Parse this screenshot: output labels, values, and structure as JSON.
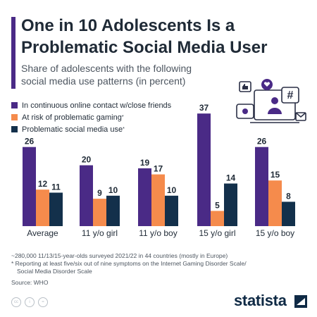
{
  "header": {
    "title_line1": "One in 10 Adolescents Is a",
    "title_line2": "Problematic Social Media User",
    "subtitle_line1": "Share of adolescents with the following",
    "subtitle_line2": "social media use patterns (in percent)"
  },
  "legend": [
    {
      "label": "In continuous online contact w/close friends",
      "marker": "",
      "color": "#4a2a86"
    },
    {
      "label": "At risk of problematic gaming",
      "marker": "*",
      "color": "#f58b4c"
    },
    {
      "label": "Problematic social media use",
      "marker": "*",
      "color": "#13304b"
    }
  ],
  "chart_data": {
    "type": "bar",
    "categories": [
      "Average",
      "11 y/o girl",
      "11 y/o boy",
      "15 y/o girl",
      "15 y/o boy"
    ],
    "series": [
      {
        "name": "In continuous online contact w/close friends",
        "values": [
          26,
          20,
          19,
          37,
          26
        ],
        "color": "#4a2a86"
      },
      {
        "name": "At risk of problematic gaming",
        "values": [
          12,
          9,
          17,
          5,
          15
        ],
        "color": "#f58b4c"
      },
      {
        "name": "Problematic social media use",
        "values": [
          11,
          10,
          10,
          14,
          8
        ],
        "color": "#13304b"
      }
    ],
    "title": "One in 10 Adolescents Is a Problematic Social Media User",
    "xlabel": "",
    "ylabel": "",
    "ylim": [
      0,
      37
    ],
    "grid": false,
    "legend": "top-left"
  },
  "notes": {
    "line1": "~280,000 11/13/15-year-olds surveyed 2021/22 in 44 countries (mostly in Europe)",
    "line2": "* Reporting at least five/six out of nine symptoms on the Internet Gaming Disorder Scale/",
    "line3": "Social Media Disorder Scale",
    "source": "Source: WHO"
  },
  "footer": {
    "brand": "statista",
    "cc_icons": [
      {
        "icon": "cc-icon",
        "text": "cc"
      },
      {
        "icon": "by-icon",
        "text": "i"
      },
      {
        "icon": "nd-icon",
        "text": "="
      }
    ]
  }
}
